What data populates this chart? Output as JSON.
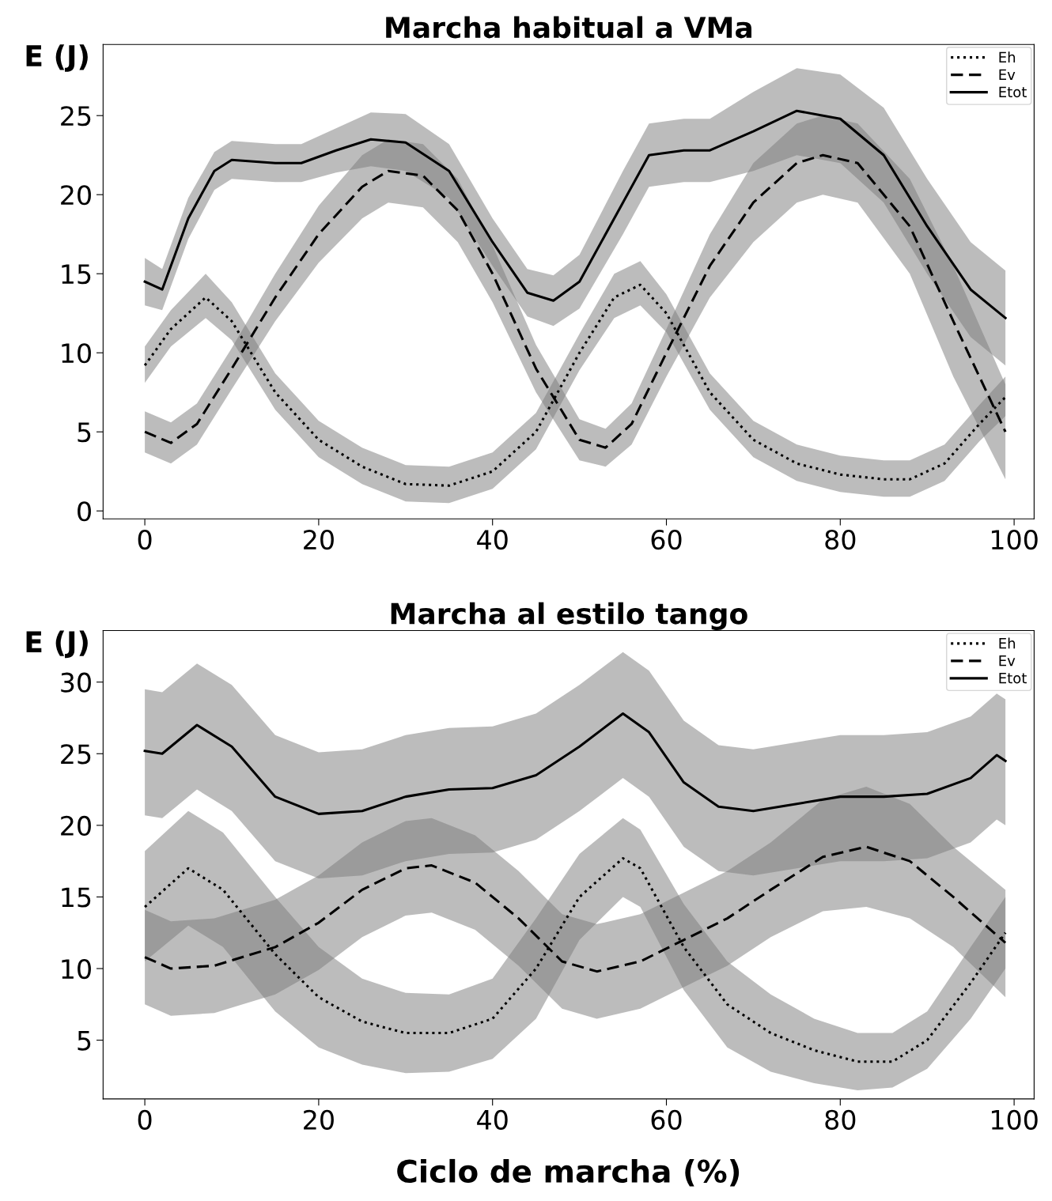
{
  "chart_data": [
    {
      "type": "line",
      "title": "Marcha habitual a VMa",
      "ylabel": "E (J)",
      "xlim": [
        -4.8,
        102.3
      ],
      "ylim": [
        -0.5,
        29.5
      ],
      "xticks": [
        0,
        20,
        40,
        60,
        80,
        100
      ],
      "yticks": [
        0,
        5,
        10,
        15,
        20,
        25
      ],
      "grid": false,
      "legend": "top right",
      "marker": "none",
      "series": [
        {
          "name": "Eh",
          "color": "#000000",
          "line_style": "dotted",
          "x": [
            0,
            3,
            7,
            10,
            15,
            20,
            25,
            30,
            35,
            40,
            45,
            50,
            54,
            57,
            60,
            65,
            70,
            75,
            80,
            85,
            88,
            92,
            96,
            99
          ],
          "values": [
            9.2,
            11.5,
            13.5,
            12.0,
            7.5,
            4.5,
            2.8,
            1.7,
            1.6,
            2.5,
            5.0,
            10.0,
            13.5,
            14.3,
            12.5,
            7.5,
            4.5,
            3.0,
            2.3,
            2.0,
            2.0,
            3.0,
            5.5,
            7.2
          ],
          "lower": [
            8.1,
            10.4,
            12.2,
            10.8,
            6.4,
            3.4,
            1.7,
            0.6,
            0.5,
            1.4,
            3.9,
            8.9,
            12.2,
            13.0,
            11.3,
            6.4,
            3.4,
            1.9,
            1.2,
            0.9,
            0.9,
            1.9,
            4.4,
            6.0
          ],
          "upper": [
            10.4,
            12.7,
            15.0,
            13.2,
            8.7,
            5.7,
            4.0,
            2.9,
            2.8,
            3.7,
            6.2,
            11.2,
            15.0,
            15.8,
            13.7,
            8.7,
            5.7,
            4.2,
            3.5,
            3.2,
            3.2,
            4.2,
            6.7,
            8.5
          ]
        },
        {
          "name": "Ev",
          "color": "#000000",
          "line_style": "dashed",
          "x": [
            0,
            3,
            6,
            10,
            15,
            20,
            25,
            28,
            32,
            36,
            40,
            45,
            50,
            53,
            56,
            60,
            65,
            70,
            75,
            78,
            82,
            88,
            93,
            99
          ],
          "values": [
            5.0,
            4.3,
            5.5,
            9.0,
            13.5,
            17.5,
            20.5,
            21.5,
            21.2,
            19.0,
            15.0,
            9.0,
            4.5,
            4.0,
            5.5,
            10.0,
            15.5,
            19.5,
            22.0,
            22.5,
            22.0,
            18.0,
            12.0,
            5.0
          ],
          "lower": [
            3.7,
            3.0,
            4.2,
            7.7,
            12.0,
            15.7,
            18.5,
            19.5,
            19.2,
            17.0,
            13.2,
            7.5,
            3.2,
            2.8,
            4.2,
            8.5,
            13.5,
            17.0,
            19.5,
            20.0,
            19.5,
            15.0,
            8.5,
            2.0
          ],
          "upper": [
            6.3,
            5.6,
            6.8,
            10.3,
            15.0,
            19.3,
            22.5,
            23.5,
            23.2,
            21.0,
            16.8,
            10.5,
            5.8,
            5.2,
            6.8,
            11.5,
            17.5,
            22.0,
            24.5,
            25.0,
            24.5,
            21.0,
            15.5,
            8.0
          ]
        },
        {
          "name": "Etot",
          "color": "#000000",
          "line_style": "solid",
          "x": [
            0,
            2,
            5,
            8,
            10,
            15,
            18,
            22,
            26,
            30,
            35,
            40,
            44,
            47,
            50,
            55,
            58,
            62,
            65,
            70,
            75,
            80,
            85,
            90,
            95,
            99
          ],
          "values": [
            14.5,
            14.0,
            18.5,
            21.5,
            22.2,
            22.0,
            22.0,
            22.8,
            23.5,
            23.3,
            21.5,
            17.0,
            13.8,
            13.3,
            14.5,
            19.5,
            22.5,
            22.8,
            22.8,
            24.0,
            25.3,
            24.8,
            22.5,
            18.0,
            14.0,
            12.2
          ],
          "lower": [
            13.0,
            12.7,
            17.2,
            20.3,
            21.0,
            20.8,
            20.8,
            21.4,
            21.8,
            21.5,
            19.8,
            15.5,
            12.3,
            11.7,
            12.8,
            17.5,
            20.5,
            20.8,
            20.8,
            21.5,
            22.5,
            22.0,
            19.5,
            15.0,
            11.0,
            9.2
          ],
          "upper": [
            16.0,
            15.3,
            19.8,
            22.7,
            23.4,
            23.2,
            23.2,
            24.2,
            25.2,
            25.1,
            23.2,
            18.5,
            15.3,
            14.9,
            16.2,
            21.5,
            24.5,
            24.8,
            24.8,
            26.5,
            28.0,
            27.6,
            25.5,
            21.0,
            17.0,
            15.2
          ]
        }
      ]
    },
    {
      "type": "line",
      "title": "Marcha al estilo tango",
      "ylabel": "E (J)",
      "xlabel": "Ciclo de marcha (%)",
      "xlim": [
        -4.8,
        102.3
      ],
      "ylim": [
        0.9,
        33.6
      ],
      "xticks": [
        0,
        20,
        40,
        60,
        80,
        100
      ],
      "yticks": [
        5,
        10,
        15,
        20,
        25,
        30
      ],
      "grid": false,
      "legend": "top right",
      "marker": "none",
      "series": [
        {
          "name": "Eh",
          "color": "#000000",
          "line_style": "dotted",
          "x": [
            0,
            5,
            9,
            15,
            20,
            25,
            30,
            35,
            40,
            45,
            50,
            55,
            57,
            62,
            67,
            72,
            77,
            82,
            86,
            90,
            95,
            99
          ],
          "values": [
            14.3,
            17.0,
            15.5,
            11.0,
            8.0,
            6.3,
            5.5,
            5.5,
            6.5,
            10.0,
            15.0,
            17.7,
            17.0,
            11.5,
            7.5,
            5.5,
            4.3,
            3.5,
            3.5,
            5.0,
            9.0,
            12.5
          ],
          "lower": [
            10.5,
            13.0,
            11.5,
            7.0,
            4.5,
            3.3,
            2.7,
            2.8,
            3.7,
            6.5,
            12.0,
            15.0,
            14.3,
            8.5,
            4.5,
            2.8,
            2.0,
            1.5,
            1.7,
            3.0,
            6.5,
            10.0
          ],
          "upper": [
            18.2,
            21.0,
            19.5,
            15.0,
            11.5,
            9.3,
            8.3,
            8.2,
            9.3,
            13.5,
            18.0,
            20.5,
            19.7,
            14.5,
            10.5,
            8.2,
            6.5,
            5.5,
            5.5,
            7.0,
            11.5,
            15.0
          ]
        },
        {
          "name": "Ev",
          "color": "#000000",
          "line_style": "dashed",
          "x": [
            0,
            3,
            8,
            15,
            20,
            25,
            30,
            33,
            38,
            43,
            48,
            52,
            57,
            62,
            67,
            72,
            78,
            83,
            88,
            93,
            99
          ],
          "values": [
            10.8,
            10.0,
            10.2,
            11.5,
            13.2,
            15.5,
            17.0,
            17.2,
            16.0,
            13.5,
            10.5,
            9.8,
            10.5,
            12.0,
            13.5,
            15.5,
            17.8,
            18.5,
            17.5,
            15.0,
            11.8
          ],
          "lower": [
            7.5,
            6.7,
            6.9,
            8.2,
            9.9,
            12.2,
            13.7,
            13.9,
            12.7,
            10.2,
            7.2,
            6.5,
            7.2,
            8.7,
            10.2,
            12.2,
            14.0,
            14.3,
            13.5,
            11.5,
            8.0
          ],
          "upper": [
            14.1,
            13.3,
            13.5,
            14.8,
            16.5,
            18.8,
            20.3,
            20.5,
            19.3,
            16.8,
            13.8,
            13.1,
            13.8,
            15.3,
            16.8,
            18.8,
            21.8,
            22.7,
            21.5,
            18.5,
            15.5
          ]
        },
        {
          "name": "Etot",
          "color": "#000000",
          "line_style": "solid",
          "x": [
            0,
            2,
            6,
            10,
            15,
            20,
            25,
            30,
            35,
            40,
            45,
            50,
            55,
            58,
            62,
            66,
            70,
            75,
            80,
            85,
            90,
            95,
            98,
            99
          ],
          "values": [
            25.2,
            25.0,
            27.0,
            25.5,
            22.0,
            20.8,
            21.0,
            22.0,
            22.5,
            22.6,
            23.5,
            25.5,
            27.8,
            26.5,
            23.0,
            21.3,
            21.0,
            21.5,
            22.0,
            22.0,
            22.2,
            23.3,
            24.9,
            24.5
          ],
          "lower": [
            20.7,
            20.5,
            22.5,
            21.0,
            17.5,
            16.3,
            16.5,
            17.5,
            18.0,
            18.1,
            19.0,
            21.0,
            23.3,
            22.0,
            18.5,
            16.8,
            16.5,
            17.0,
            17.5,
            17.5,
            17.7,
            18.8,
            20.4,
            20.0
          ],
          "upper": [
            29.5,
            29.3,
            31.3,
            29.8,
            26.3,
            25.1,
            25.3,
            26.3,
            26.8,
            26.9,
            27.8,
            29.8,
            32.1,
            30.8,
            27.3,
            25.6,
            25.3,
            25.8,
            26.3,
            26.3,
            26.5,
            27.6,
            29.2,
            28.8
          ]
        }
      ]
    }
  ]
}
